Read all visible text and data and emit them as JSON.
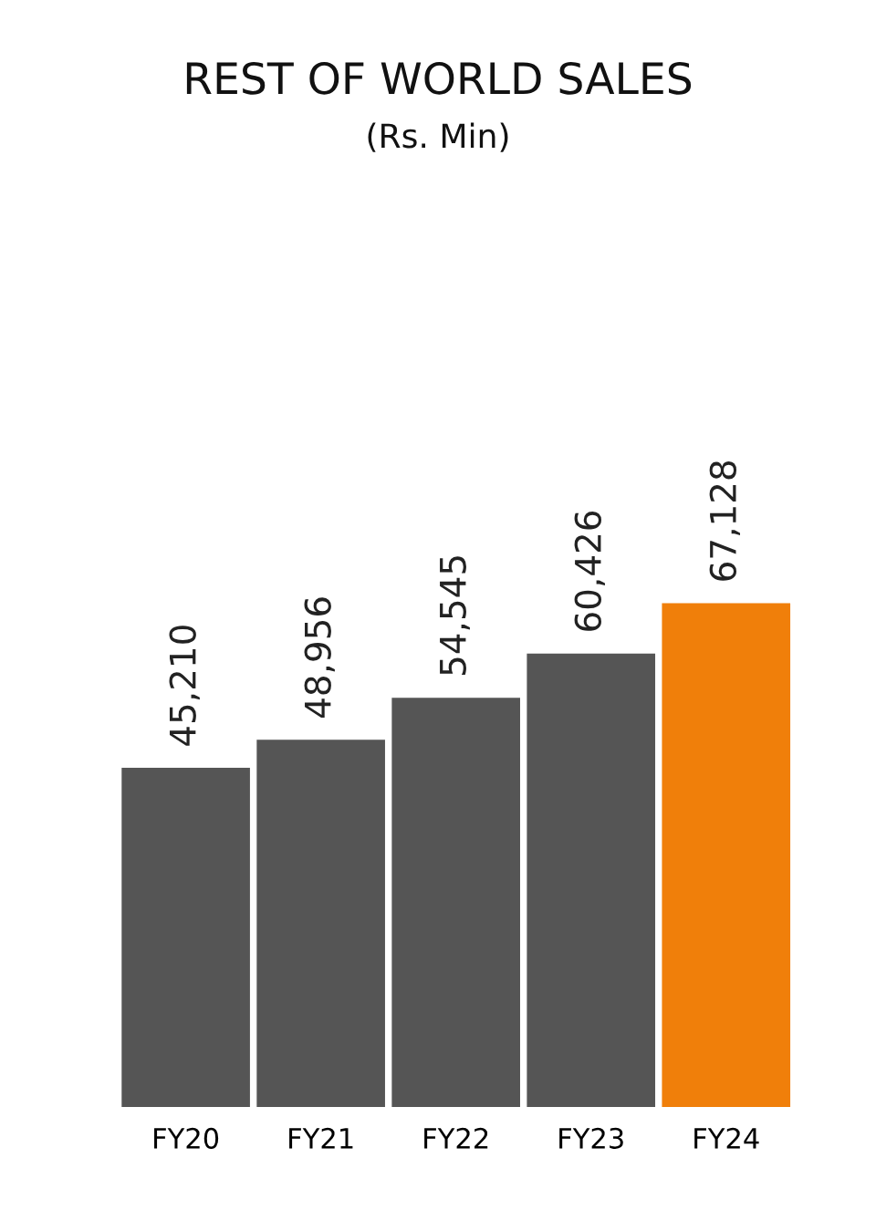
{
  "chart_data": {
    "type": "bar",
    "title": "REST OF WORLD SALES",
    "subtitle": "(Rs. Min)",
    "categories": [
      "FY20",
      "FY21",
      "FY22",
      "FY23",
      "FY24"
    ],
    "values": [
      45210,
      48956,
      54545,
      60426,
      67128
    ],
    "colors": [
      "#555555",
      "#555555",
      "#555555",
      "#555555",
      "#f07f0a"
    ],
    "value_labels": [
      "45,210",
      "48,956",
      "54,545",
      "60,426",
      "67,128"
    ],
    "tick_labels": "x",
    "grid": false,
    "legend": false
  }
}
